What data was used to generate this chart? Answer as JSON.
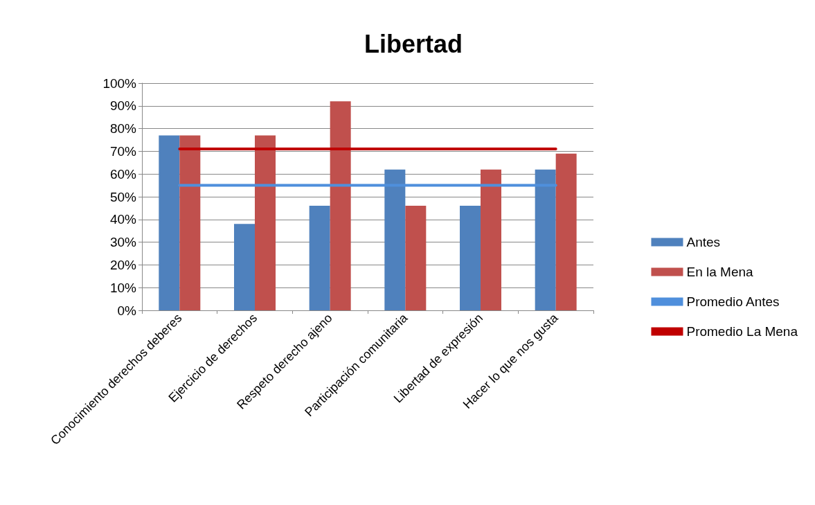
{
  "chart_data": {
    "type": "bar",
    "title": "Libertad",
    "categories": [
      "Conocimiento derechos deberes",
      "Ejercicio de derechos",
      "Respeto derecho ajeno",
      "Participación comunitaria",
      "Libertad de expresión",
      "Hacer lo que nos gusta"
    ],
    "series": [
      {
        "name": "Antes",
        "color": "#4f81bd",
        "values": [
          77,
          38,
          46,
          62,
          46,
          62
        ]
      },
      {
        "name": "En la Mena",
        "color": "#c0504d",
        "values": [
          77,
          77,
          92,
          46,
          62,
          69
        ]
      },
      {
        "name": "Promedio Antes",
        "type": "line",
        "color": "#4f8fdc",
        "values": [
          55,
          55,
          55,
          55,
          55,
          55
        ]
      },
      {
        "name": "Promedio La Mena",
        "type": "line",
        "color": "#c00000",
        "values": [
          71,
          71,
          71,
          71,
          71,
          71
        ]
      }
    ],
    "ylim": [
      0,
      100
    ],
    "yticks": [
      {
        "value": 0,
        "label": "0%"
      },
      {
        "value": 10,
        "label": "10%"
      },
      {
        "value": 20,
        "label": "20%"
      },
      {
        "value": 30,
        "label": "30%"
      },
      {
        "value": 40,
        "label": "40%"
      },
      {
        "value": 50,
        "label": "50%"
      },
      {
        "value": 60,
        "label": "60%"
      },
      {
        "value": 70,
        "label": "70%"
      },
      {
        "value": 80,
        "label": "80%"
      },
      {
        "value": 90,
        "label": "90%"
      },
      {
        "value": 100,
        "label": "100%"
      }
    ],
    "grid": "y",
    "legend": "right",
    "marker": "none"
  }
}
